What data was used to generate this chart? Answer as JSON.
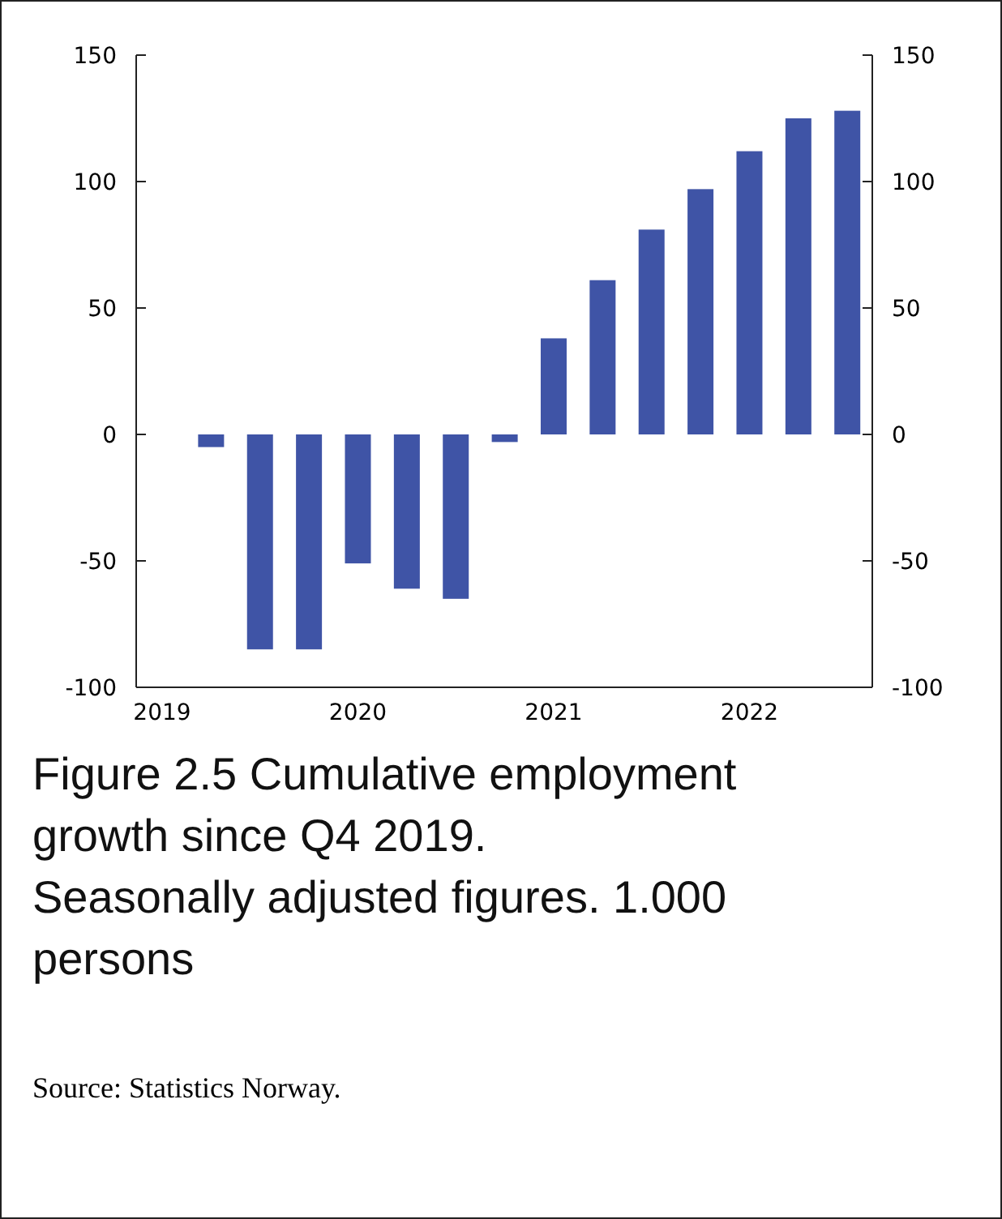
{
  "chart_data": {
    "type": "bar",
    "title": "Figure 2.5 Cumulative employment growth since Q4 2019.",
    "subtitle": "Seasonally adjusted figures. 1.000 persons",
    "annotations": [
      "Source: Statistics Norway."
    ],
    "categories": [
      "2019",
      null,
      null,
      null,
      "2020",
      null,
      null,
      null,
      "2021",
      null,
      null,
      null,
      "2022",
      null,
      null
    ],
    "values": [
      0,
      -5,
      -85,
      -85,
      -51,
      -61,
      -65,
      -3,
      38,
      61,
      81,
      97,
      112,
      125,
      128
    ],
    "color": "#3f54a6",
    "ylim": [
      -100,
      150
    ],
    "yticks": [
      -100,
      -50,
      0,
      50,
      100,
      150
    ],
    "y2lim": [
      -100,
      150
    ],
    "y2ticks": [
      -100,
      -50,
      0,
      50,
      100,
      150
    ],
    "grid": false
  }
}
